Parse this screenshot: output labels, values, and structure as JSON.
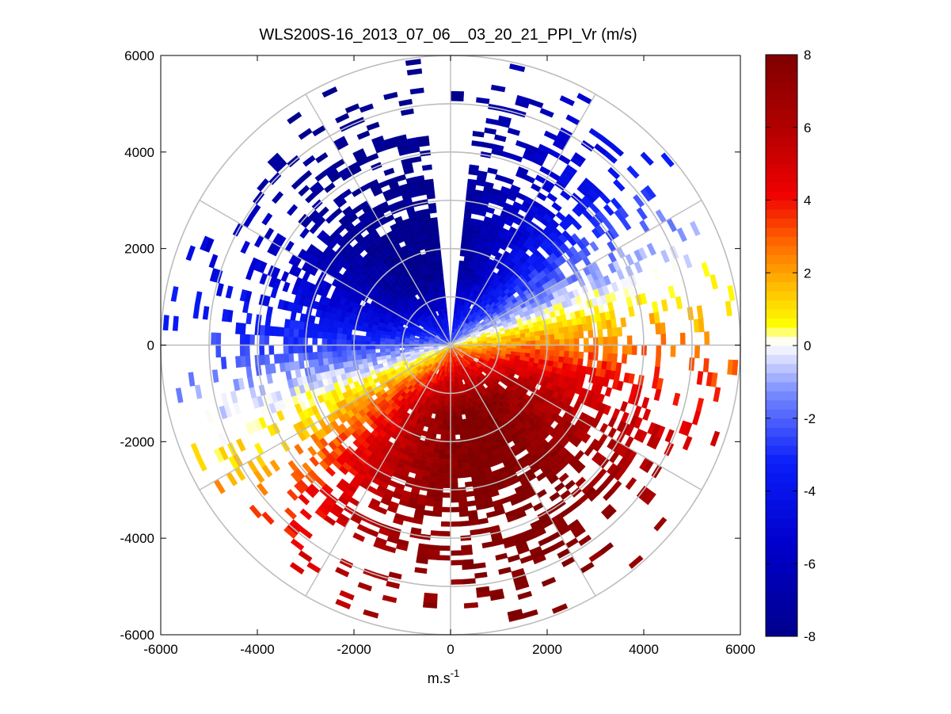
{
  "chart_data": {
    "type": "heatmap",
    "subtype": "polar-ppi",
    "title": "WLS200S-16_2013_07_06__03_20_21_PPI_Vr (m/s)",
    "xlabel": "m.s",
    "xlabel_superscript": "-1",
    "ylabel": "",
    "xlim": [
      -6000,
      6000
    ],
    "ylim": [
      -6000,
      6000
    ],
    "xticks": [
      "-6000",
      "-4000",
      "-2000",
      "0",
      "2000",
      "4000",
      "6000"
    ],
    "yticks": [
      "6000",
      "4000",
      "2000",
      "0",
      "-2000",
      "-4000",
      "-6000"
    ],
    "xtick_values": [
      -6000,
      -4000,
      -2000,
      0,
      2000,
      4000,
      6000
    ],
    "ytick_values": [
      6000,
      4000,
      2000,
      0,
      -2000,
      -4000,
      -6000
    ],
    "range_rings": [
      1000,
      2000,
      3000,
      4000,
      5000,
      6000
    ],
    "radial_spokes_deg": [
      0,
      30,
      60,
      90,
      120,
      150,
      180,
      210,
      240,
      270,
      300,
      330
    ],
    "colorbar": {
      "min": -8,
      "max": 8,
      "ticks": [
        "8",
        "6",
        "4",
        "2",
        "0",
        "-2",
        "-4",
        "-6",
        "-8"
      ],
      "tick_values": [
        8,
        6,
        4,
        2,
        0,
        -2,
        -4,
        -6,
        -8
      ],
      "colormap": "blue-white-yellow-red"
    },
    "field_description": {
      "negative_sector_azimuth_deg": [
        250,
        70
      ],
      "positive_sector_azimuth_deg": [
        70,
        250
      ],
      "zero_line_azimuth_deg": 70,
      "max_abs_velocity": 8
    }
  }
}
